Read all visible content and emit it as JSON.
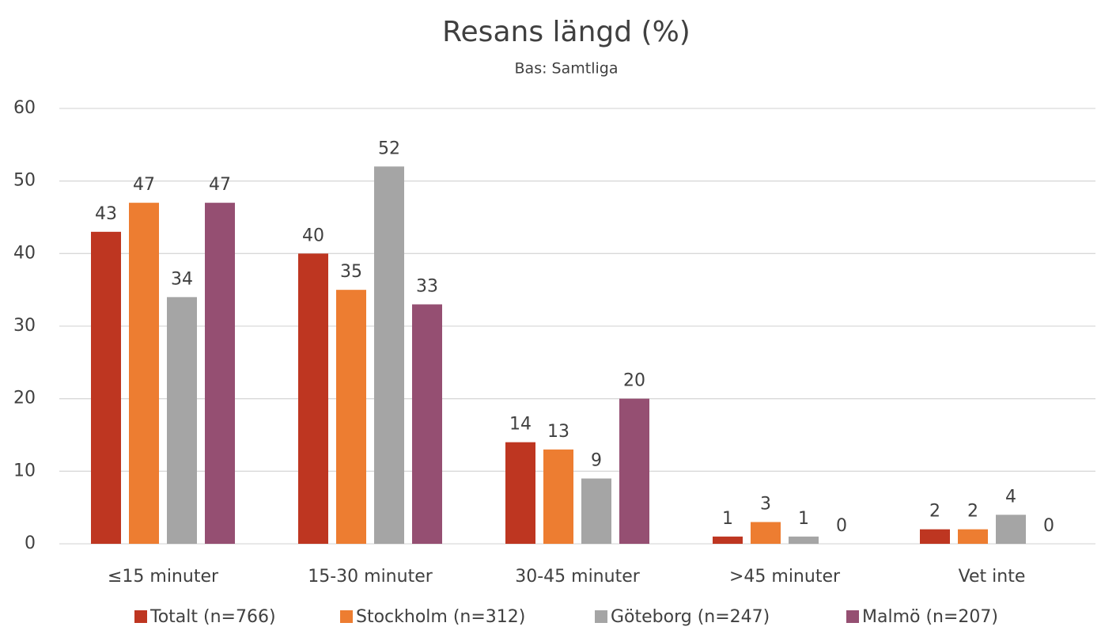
{
  "chart_data": {
    "type": "bar",
    "title": "Resans längd (%)",
    "subtitle": "Bas: Samtliga",
    "categories": [
      "≤15 minuter",
      "15-30 minuter",
      "30-45 minuter",
      ">45 minuter",
      "Vet inte"
    ],
    "series": [
      {
        "name": "Totalt (n=766)",
        "color": "#be3621",
        "values": [
          43,
          40,
          14,
          1,
          2
        ]
      },
      {
        "name": "Stockholm (n=312)",
        "color": "#ed7d31",
        "values": [
          47,
          35,
          13,
          3,
          2
        ]
      },
      {
        "name": "Göteborg (n=247)",
        "color": "#a5a5a5",
        "values": [
          34,
          52,
          9,
          1,
          4
        ]
      },
      {
        "name": "Malmö (n=207)",
        "color": "#954f72",
        "values": [
          47,
          33,
          20,
          0,
          0
        ]
      }
    ],
    "ylim": [
      0,
      60
    ],
    "yticks": [
      0,
      10,
      20,
      30,
      40,
      50,
      60
    ],
    "grid": true,
    "legend": "bottom"
  }
}
